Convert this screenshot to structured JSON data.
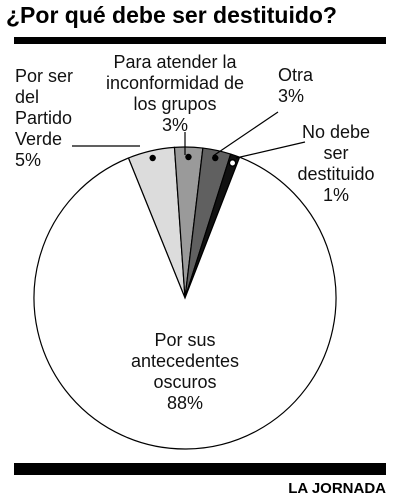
{
  "chart_data": {
    "type": "pie",
    "title": "¿Por qué debe ser destituido?",
    "categories": [
      "Por ser del Partido Verde",
      "Para atender la inconformidad de los grupos",
      "Otra",
      "No debe ser destituido",
      "Por sus antecedentes oscuros"
    ],
    "values": [
      5,
      3,
      3,
      1,
      88
    ],
    "value_labels": [
      "5%",
      "3%",
      "3%",
      "1%",
      "88%"
    ],
    "colors": [
      "#dcdcdc",
      "#9a9a9a",
      "#606060",
      "#111111",
      "#ffffff"
    ],
    "source": "LA JORNADA"
  }
}
